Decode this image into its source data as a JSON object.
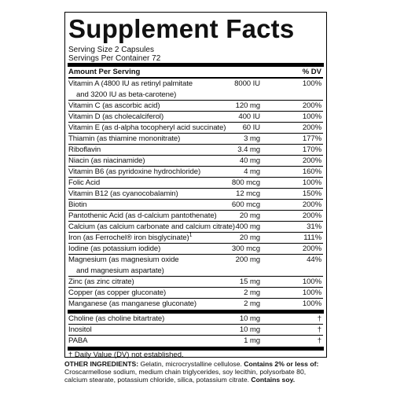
{
  "title": "Supplement Facts",
  "serving_size": "Serving Size 2 Capsules",
  "servings_per_container": "Servings Per Container 72",
  "header": {
    "amount": "Amount Per Serving",
    "dv": "% DV"
  },
  "rows": [
    {
      "name": [
        "Vitamin A (4800 IU as retinyl palmitate",
        "and 3200 IU as beta-carotene)"
      ],
      "amount": "8000 IU",
      "dv": "100%"
    },
    {
      "name": [
        "Vitamin C (as ascorbic acid)"
      ],
      "amount": "120 mg",
      "dv": "200%"
    },
    {
      "name": [
        "Vitamin D (as cholecalciferol)"
      ],
      "amount": "400 IU",
      "dv": "100%"
    },
    {
      "name": [
        "Vitamin E (as d-alpha tocopheryl acid succinate)"
      ],
      "amount": "60 IU",
      "dv": "200%"
    },
    {
      "name": [
        "Thiamin (as thiamine mononitrate)"
      ],
      "amount": "3 mg",
      "dv": "177%"
    },
    {
      "name": [
        "Riboflavin"
      ],
      "amount": "3.4 mg",
      "dv": "170%"
    },
    {
      "name": [
        "Niacin (as niacinamide)"
      ],
      "amount": "40 mg",
      "dv": "200%"
    },
    {
      "name": [
        "Vitamin B6 (as pyridoxine hydrochloride)"
      ],
      "amount": "4 mg",
      "dv": "160%"
    },
    {
      "name": [
        "Folic Acid"
      ],
      "amount": "800 mcg",
      "dv": "100%"
    },
    {
      "name": [
        "Vitamin B12 (as cyanocobalamin)"
      ],
      "amount": "12 mcg",
      "dv": "150%"
    },
    {
      "name": [
        "Biotin"
      ],
      "amount": "600 mcg",
      "dv": "200%"
    },
    {
      "name": [
        "Pantothenic Acid (as d-calcium pantothenate)"
      ],
      "amount": "20 mg",
      "dv": "200%"
    },
    {
      "name": [
        "Calcium (as calcium carbonate and calcium citrate)"
      ],
      "amount": "400 mg",
      "dv": "31%"
    },
    {
      "name": [
        "Iron (as Ferrochel® iron bisglycinate)"
      ],
      "note": "1",
      "amount": "20 mg",
      "dv": "111%"
    },
    {
      "name": [
        "Iodine (as potassium iodide)"
      ],
      "amount": "300 mcg",
      "dv": "200%"
    },
    {
      "name": [
        "Magnesium (as magnesium oxide",
        "and magnesium aspartate)"
      ],
      "amount": "200 mg",
      "dv": "44%"
    },
    {
      "name": [
        "Zinc (as zinc citrate)"
      ],
      "amount": "15 mg",
      "dv": "100%"
    },
    {
      "name": [
        "Copper (as copper gluconate)"
      ],
      "amount": "2 mg",
      "dv": "100%"
    },
    {
      "name": [
        "Manganese (as manganese gluconate)"
      ],
      "amount": "2 mg",
      "dv": "100%"
    }
  ],
  "other_rows": [
    {
      "name": [
        "Choline (as choline bitartrate)"
      ],
      "amount": "10 mg",
      "dv": "†"
    },
    {
      "name": [
        "Inositol"
      ],
      "amount": "10 mg",
      "dv": "†"
    },
    {
      "name": [
        "PABA"
      ],
      "amount": "1 mg",
      "dv": "†"
    }
  ],
  "footnote": "† Daily Value (DV) not established.",
  "other_ingredients": {
    "label": "OTHER INGREDIENTS:",
    "text": " Gelatin, microcrystalline cellulose. ",
    "minor_label": "Contains 2% or less of:",
    "minor_text": " Croscarmellose sodium, medium chain triglycerides, soy lecithin, polysorbate 80, calcium stearate, potassium chloride, silica, potassium citrate. ",
    "allergen": "Contains soy."
  }
}
